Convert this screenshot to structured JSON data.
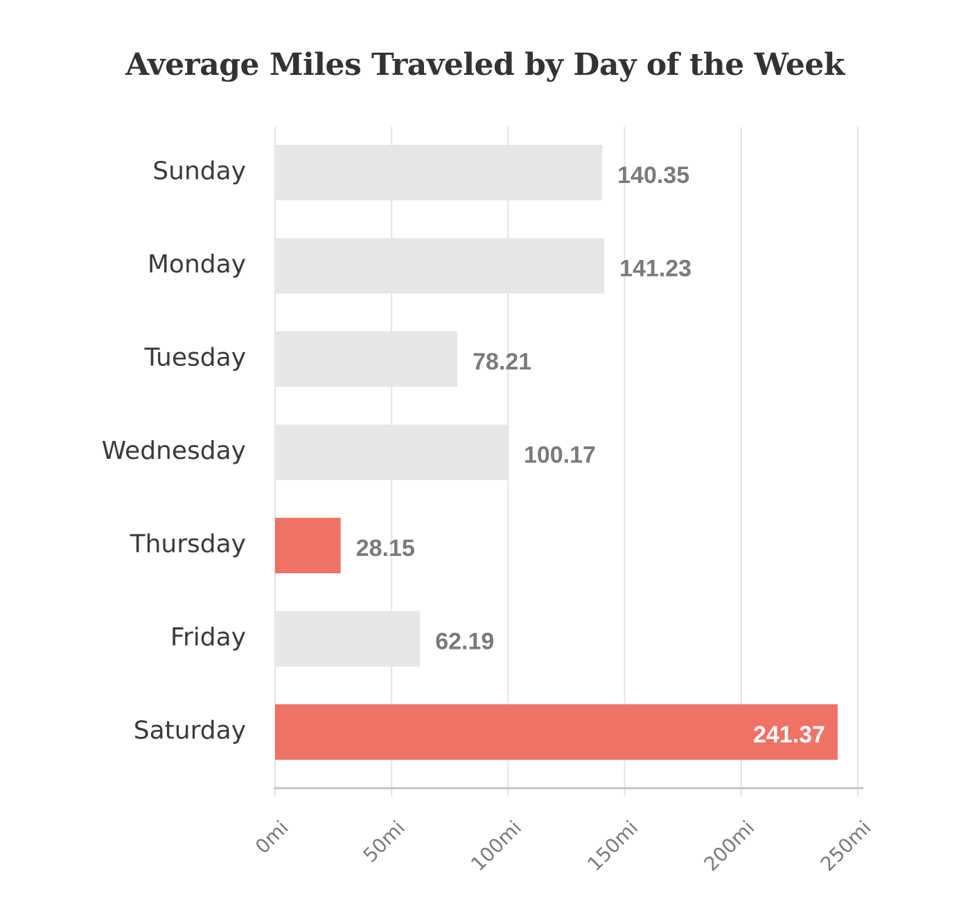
{
  "chart_data": {
    "type": "bar",
    "orientation": "horizontal",
    "title": "Average Miles Traveled by Day of the Week",
    "xlabel": "",
    "ylabel": "",
    "categories": [
      "Sunday",
      "Monday",
      "Tuesday",
      "Wednesday",
      "Thursday",
      "Friday",
      "Saturday"
    ],
    "values": [
      140.35,
      141.23,
      78.21,
      100.17,
      28.15,
      62.19,
      241.37
    ],
    "value_labels": [
      "140.35",
      "141.23",
      "78.21",
      "100.17",
      "28.15",
      "62.19",
      "241.37"
    ],
    "highlighted": [
      false,
      false,
      false,
      false,
      true,
      false,
      true
    ],
    "xlim": [
      0,
      250
    ],
    "x_ticks": [
      0,
      50,
      100,
      150,
      200,
      250
    ],
    "x_tick_labels": [
      "0mi",
      "50mi",
      "100mi",
      "150mi",
      "200mi",
      "250mi"
    ],
    "grid": true,
    "legend": false
  },
  "colors": {
    "bar_default": "#e8e6e5",
    "bar_highlight": "#f07266",
    "title": "#333333",
    "category_text": "#3a3a3a",
    "value_text": "#7a7a7a",
    "grid": "#e3e3e3",
    "axis": "#c4c4c4"
  }
}
